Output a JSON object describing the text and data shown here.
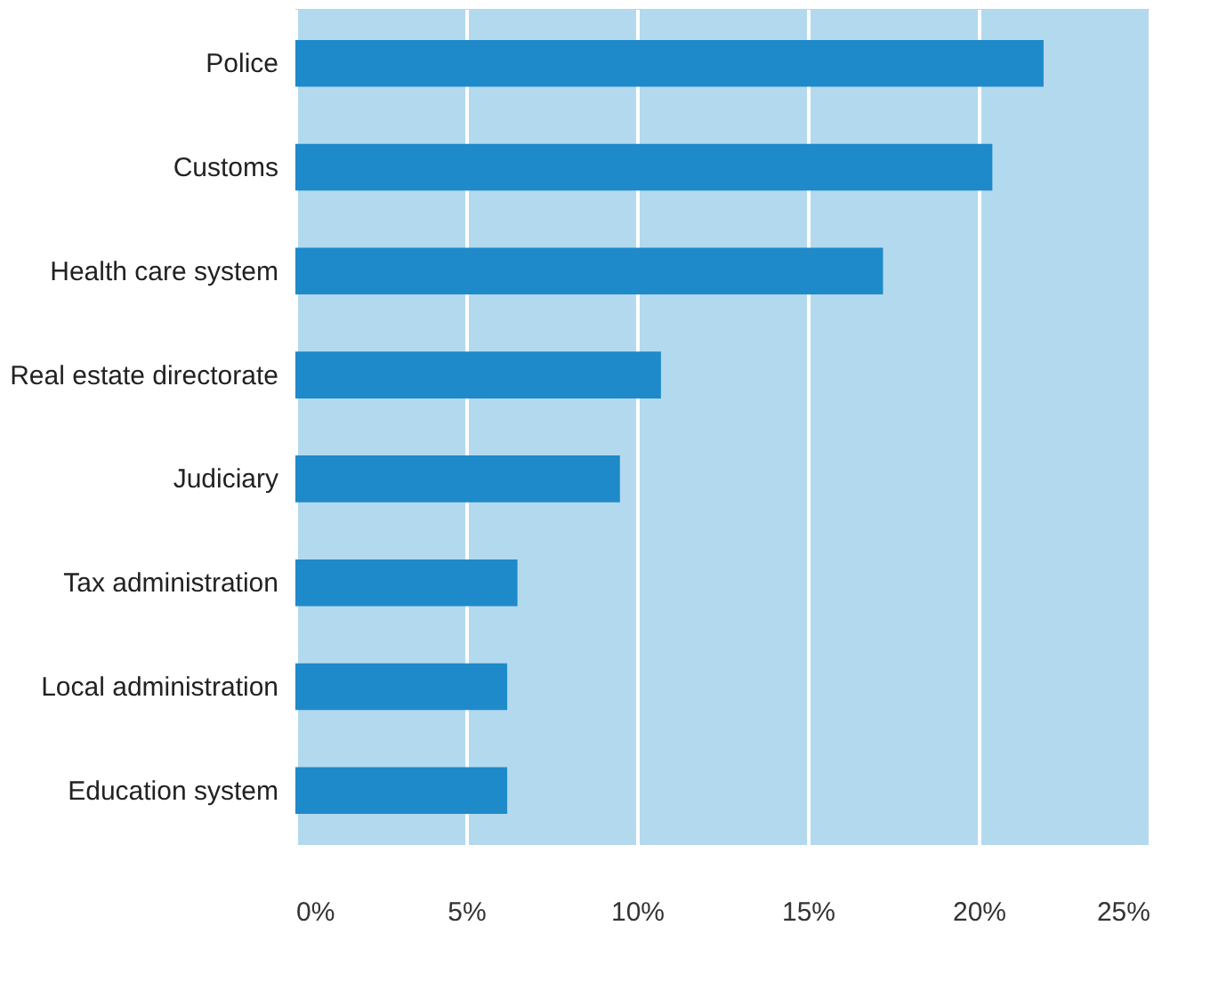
{
  "chart_data": {
    "type": "bar",
    "orientation": "horizontal",
    "categories": [
      "Police",
      "Customs",
      "Health care system",
      "Real estate directorate",
      "Judiciary",
      "Tax administration",
      "Local administration",
      "Education system"
    ],
    "values": [
      21.9,
      20.4,
      17.2,
      10.7,
      9.5,
      6.5,
      6.2,
      6.2
    ],
    "color": "#1f8ac9",
    "xlim": [
      0,
      25
    ],
    "xticks": [
      {
        "value": 0,
        "label": "0%"
      },
      {
        "value": 5,
        "label": "5%"
      },
      {
        "value": 10,
        "label": "10%"
      },
      {
        "value": 15,
        "label": "15%"
      },
      {
        "value": 20,
        "label": "20%"
      },
      {
        "value": 25,
        "label": "25%"
      }
    ],
    "grid": "x"
  }
}
